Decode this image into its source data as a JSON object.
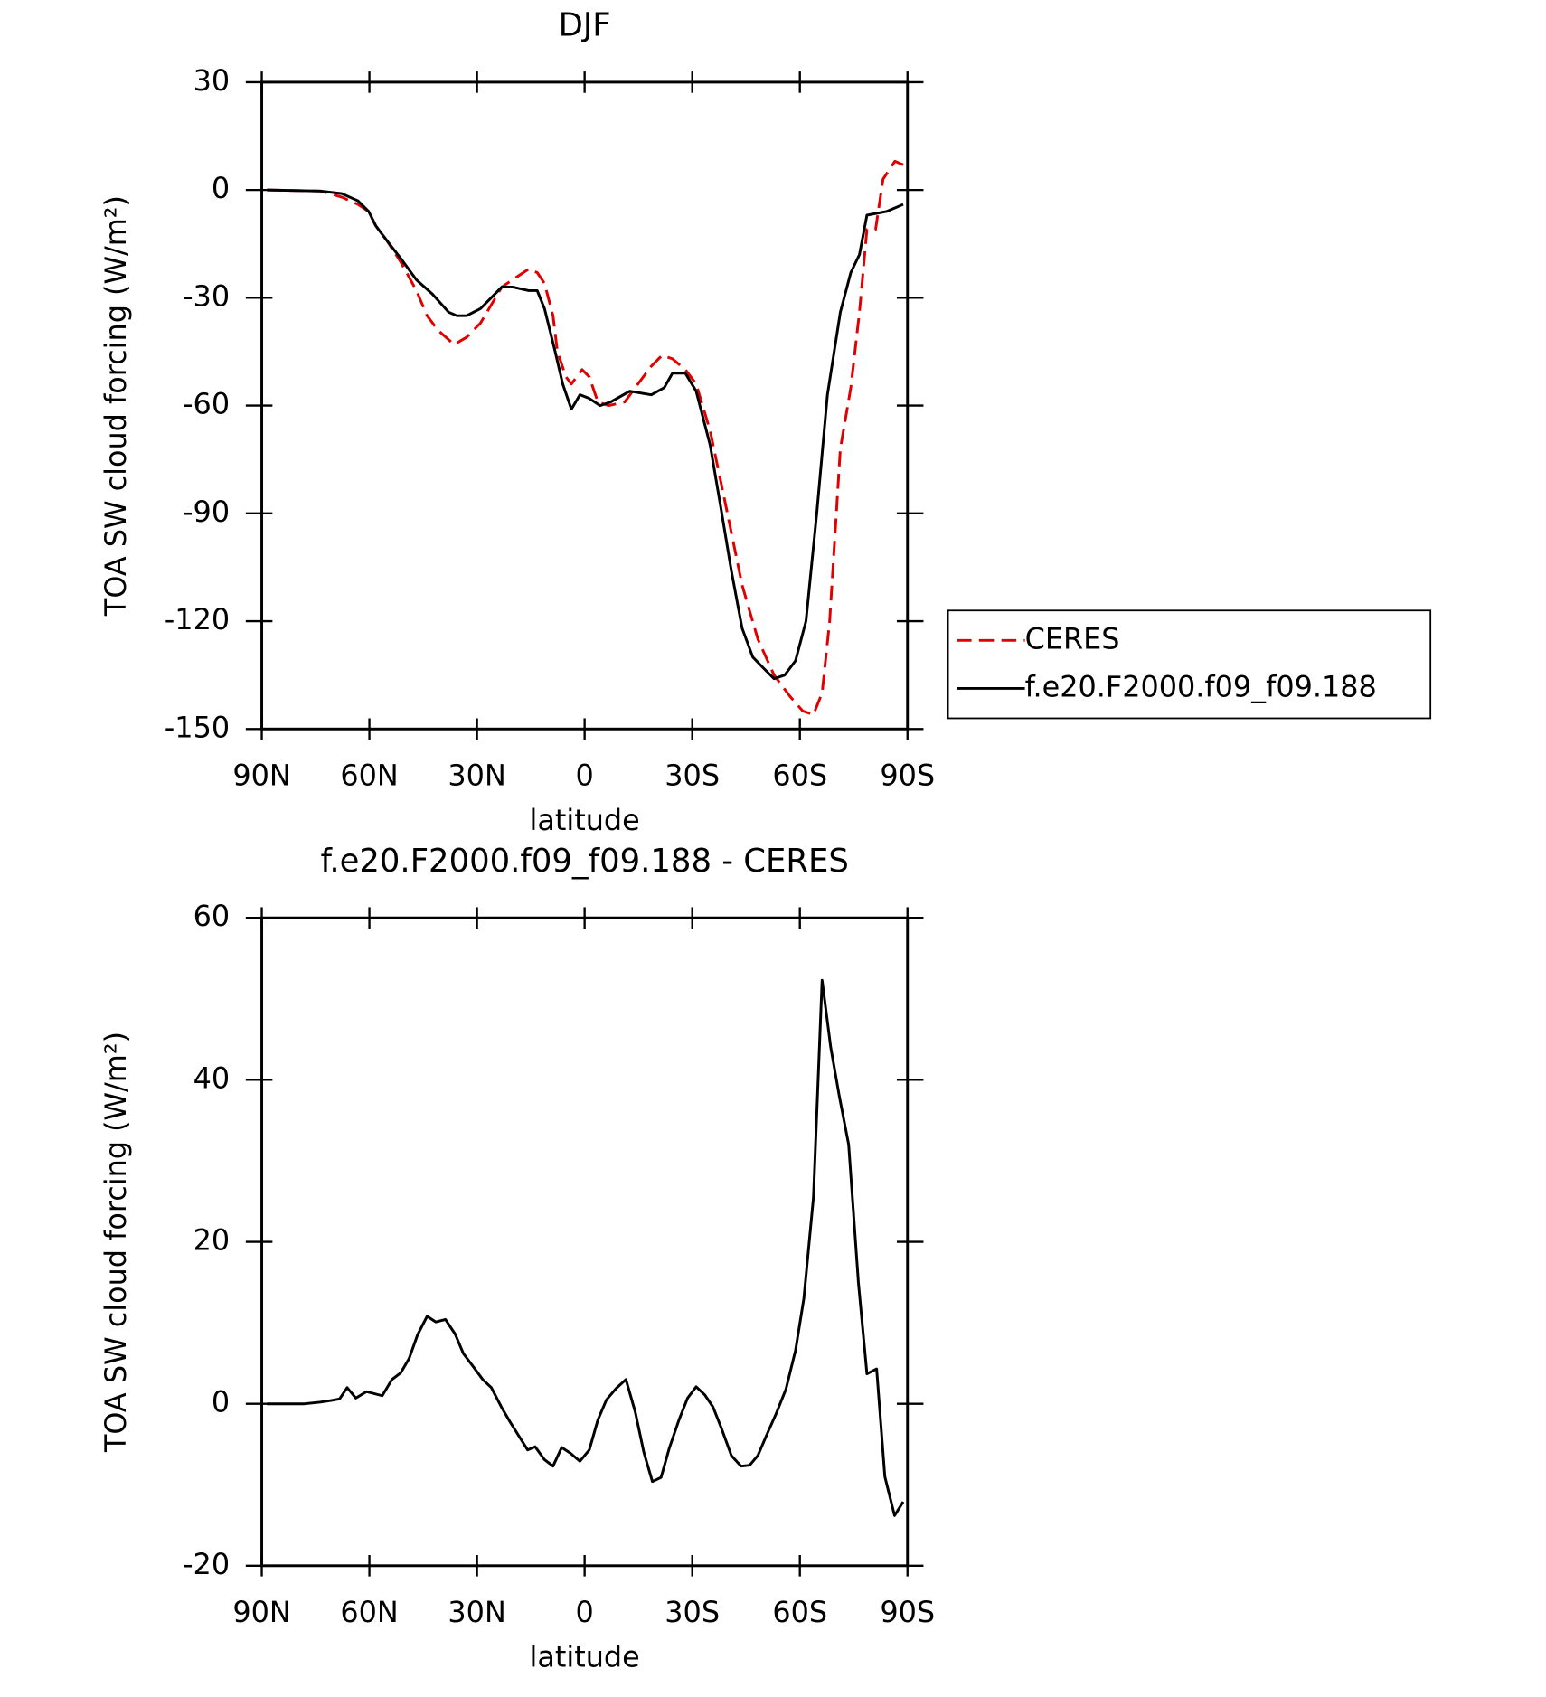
{
  "chart_data": [
    {
      "type": "line",
      "title": "DJF",
      "x_label": "latitude",
      "y_label": "TOA SW cloud forcing (W/m²)",
      "xlim": [
        90,
        -90
      ],
      "xticks": [
        {
          "value": 90,
          "label": "90N"
        },
        {
          "value": 60,
          "label": "60N"
        },
        {
          "value": 30,
          "label": "30N"
        },
        0,
        {
          "value": -30,
          "label": "30S"
        },
        {
          "value": -60,
          "label": "60S"
        },
        {
          "value": -90,
          "label": "90S"
        }
      ],
      "ylim": [
        30,
        -150
      ],
      "yticks": [
        30,
        0,
        -30,
        -60,
        -90,
        -120,
        -150
      ],
      "legend": "outside-right",
      "series": [
        {
          "name": "CERES",
          "color": "#e00000",
          "dashed": true,
          "x": [
            88.5,
            73.6,
            67.7,
            63.2,
            60.2,
            58.2,
            55.2,
            51.3,
            46.9,
            43.9,
            40.9,
            36.4,
            32.9,
            29.0,
            23.1,
            20.1,
            15.6,
            13.2,
            11.2,
            8.8,
            7.6,
            5.2,
            3.7,
            0.7,
            -1.3,
            -3.7,
            -6.7,
            -11.2,
            -14.1,
            -18.6,
            -21.6,
            -24.5,
            -28.1,
            -31.1,
            -35.0,
            -39.4,
            -43.9,
            -48.3,
            -52.8,
            -57.3,
            -60.8,
            -63.8,
            -66.2,
            -68.3,
            -71.3,
            -74.2,
            -76.6,
            -78.7,
            -81.1,
            -83.2,
            -86.5,
            -88.8
          ],
          "values": [
            0,
            -0.3,
            -2,
            -4,
            -6,
            -10,
            -14,
            -20,
            -28,
            -35,
            -39,
            -43,
            -41,
            -37,
            -27,
            -25,
            -22,
            -23,
            -26,
            -35,
            -45,
            -52,
            -54,
            -50,
            -52,
            -59,
            -60,
            -59,
            -55,
            -49,
            -46,
            -47,
            -50,
            -54,
            -67,
            -88,
            -110,
            -125,
            -135,
            -141,
            -145,
            -146,
            -140,
            -120,
            -72,
            -55,
            -34,
            -11,
            -11,
            3,
            8,
            7
          ]
        },
        {
          "name": "f.e20.F2000.f09_f09.188",
          "color": "#000000",
          "dashed": false,
          "x": [
            88.5,
            73.6,
            67.7,
            63.2,
            60.2,
            58.2,
            55.2,
            51.3,
            46.9,
            42.4,
            37.9,
            35.6,
            32.9,
            29.0,
            23.1,
            20.1,
            15.6,
            13.2,
            11.2,
            8.2,
            6.1,
            3.7,
            1.3,
            -1.3,
            -4.3,
            -7.3,
            -12.6,
            -18.6,
            -22.2,
            -24.5,
            -28.1,
            -31.1,
            -35.0,
            -37.9,
            -40.9,
            -43.9,
            -46.9,
            -49.8,
            -52.8,
            -55.8,
            -58.8,
            -61.7,
            -64.7,
            -67.7,
            -71.3,
            -74.2,
            -76.6,
            -78.7,
            -84.1,
            -88.8
          ],
          "values": [
            0,
            -0.3,
            -1,
            -3,
            -6,
            -10,
            -14,
            -19,
            -25,
            -29,
            -34,
            -35,
            -35,
            -33,
            -27,
            -27,
            -28,
            -28,
            -33,
            -45,
            -54,
            -61,
            -57,
            -58,
            -60,
            -59,
            -56,
            -57,
            -55,
            -51,
            -51,
            -56,
            -71,
            -88,
            -106,
            -122,
            -130,
            -133,
            -136,
            -135,
            -131,
            -120,
            -90,
            -57,
            -34,
            -23,
            -18,
            -7,
            -6,
            -4
          ]
        }
      ]
    },
    {
      "type": "line",
      "title": "f.e20.F2000.f09_f09.188 - CERES",
      "x_label": "latitude",
      "y_label": "TOA SW cloud forcing (W/m²)",
      "xlim": [
        90,
        -90
      ],
      "xticks": [
        {
          "value": 90,
          "label": "90N"
        },
        {
          "value": 60,
          "label": "60N"
        },
        {
          "value": 30,
          "label": "30N"
        },
        0,
        {
          "value": -30,
          "label": "30S"
        },
        {
          "value": -60,
          "label": "60S"
        },
        {
          "value": -90,
          "label": "90S"
        }
      ],
      "ylim": [
        60,
        -20
      ],
      "yticks": [
        60,
        40,
        20,
        0,
        -20
      ],
      "series": [
        {
          "color": "#000000",
          "dashed": false,
          "x": [
            88.5,
            78.1,
            73.6,
            70.7,
            68.3,
            66.2,
            63.8,
            60.8,
            56.4,
            53.7,
            51.3,
            48.9,
            46.6,
            43.9,
            41.5,
            38.8,
            36.1,
            33.8,
            31.1,
            28.4,
            26.0,
            23.1,
            20.7,
            18.3,
            15.9,
            13.8,
            11.2,
            8.8,
            6.4,
            4.0,
            1.3,
            -1.3,
            -3.7,
            -6.1,
            -8.8,
            -11.5,
            -14.1,
            -16.5,
            -18.9,
            -21.3,
            -23.6,
            -26.3,
            -28.7,
            -31.1,
            -33.5,
            -35.8,
            -38.2,
            -40.9,
            -43.6,
            -46.0,
            -48.3,
            -51.0,
            -53.4,
            -56.1,
            -58.8,
            -61.1,
            -63.8,
            -66.2,
            -68.6,
            -71.0,
            -73.6,
            -76.3,
            -78.7,
            -81.4,
            -83.7,
            -86.4,
            -88.8
          ],
          "values": [
            0,
            0,
            0.2,
            0.4,
            0.6,
            2,
            0.7,
            1.5,
            1,
            3,
            3.8,
            5.6,
            8.5,
            10.8,
            10.1,
            10.4,
            8.6,
            6.2,
            4.6,
            3,
            2,
            -0.5,
            -2.3,
            -4,
            -5.7,
            -5.3,
            -6.9,
            -7.7,
            -5.4,
            -6.1,
            -7.1,
            -5.7,
            -2,
            0.5,
            1.9,
            3,
            -1,
            -6,
            -9.6,
            -9.1,
            -5.5,
            -2,
            0.7,
            2.1,
            1.1,
            -0.4,
            -3.1,
            -6.4,
            -7.7,
            -7.6,
            -6.4,
            -3.6,
            -1.2,
            1.8,
            6.6,
            13,
            25.5,
            52.3,
            44,
            38,
            32,
            15,
            3.7,
            4.3,
            -9,
            -13.8,
            -12.1
          ]
        }
      ]
    }
  ]
}
